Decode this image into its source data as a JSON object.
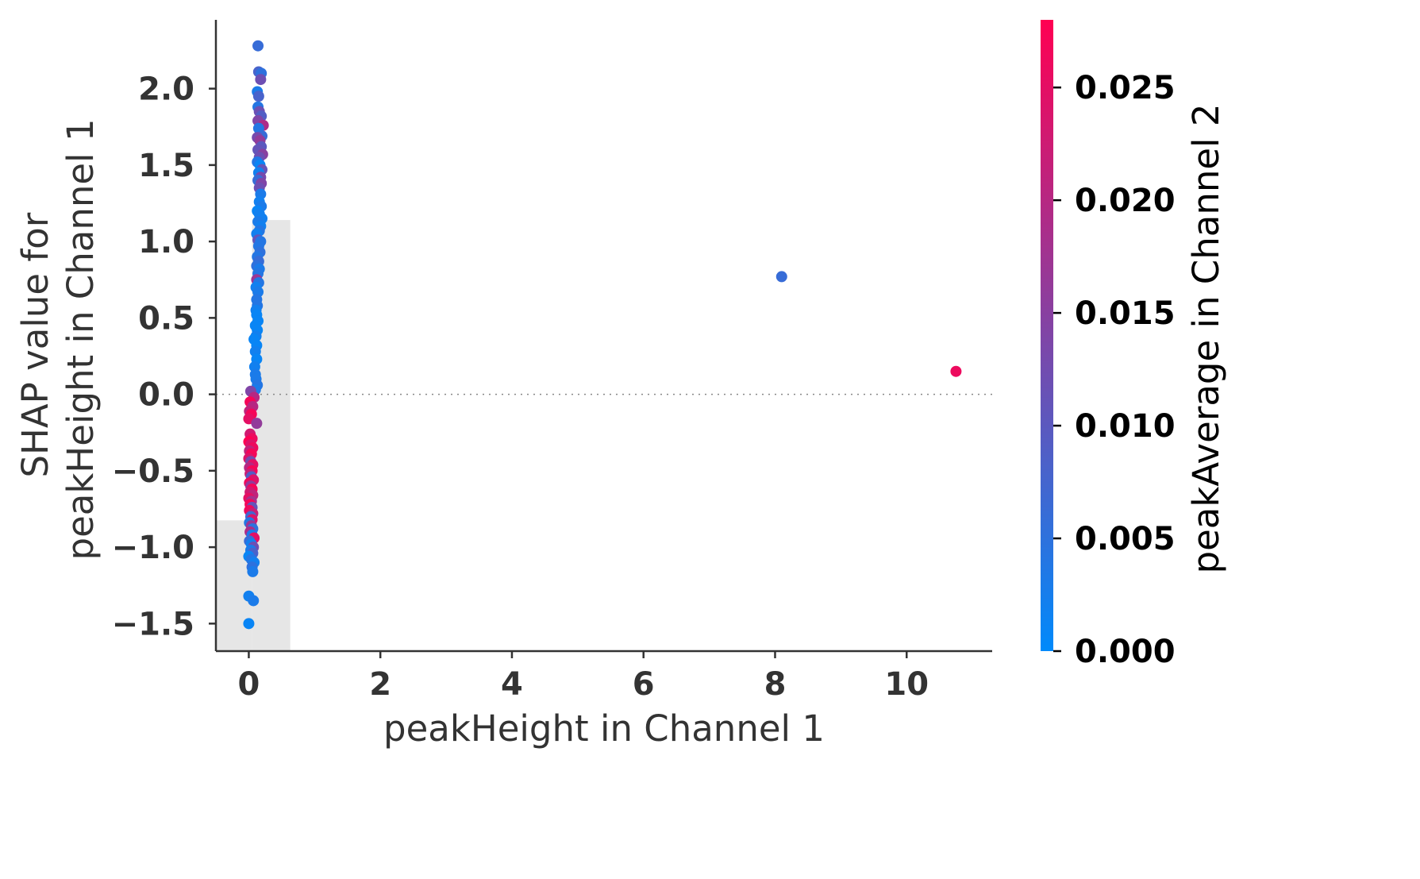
{
  "chart_data": {
    "type": "scatter",
    "title": "",
    "xlabel": "peakHeight in Channel 1",
    "ylabel_lines": [
      "SHAP value for",
      "peakHeight in Channel 1"
    ],
    "xlim": [
      -0.5,
      11.3
    ],
    "ylim": [
      -1.68,
      2.45
    ],
    "xticks": [
      0,
      2,
      4,
      6,
      8,
      10
    ],
    "xtick_labels": [
      "0",
      "2",
      "4",
      "6",
      "8",
      "10"
    ],
    "yticks": [
      -1.5,
      -1.0,
      -0.5,
      0.0,
      0.5,
      1.0,
      1.5,
      2.0
    ],
    "ytick_labels": [
      "−1.5",
      "−1.0",
      "−0.5",
      "0.0",
      "0.5",
      "1.0",
      "1.5",
      "2.0"
    ],
    "zero_line": true,
    "grid": false,
    "histogram": {
      "color": "#e6e6e6",
      "bins": [
        {
          "x0": -0.5,
          "x1": 0.05,
          "height": 0.27
        },
        {
          "x0": 0.05,
          "x1": 0.63,
          "height": 0.89
        }
      ]
    },
    "colorbar": {
      "label": "peakAverage in Channel 2",
      "range": [
        0.0,
        0.028
      ],
      "ticks": [
        0.0,
        0.005,
        0.01,
        0.015,
        0.02,
        0.025
      ],
      "tick_labels": [
        "0.000",
        "0.005",
        "0.010",
        "0.015",
        "0.020",
        "0.025"
      ],
      "colors": [
        "#008afb",
        "#ff0052"
      ]
    },
    "points": [
      [
        0.14,
        2.28,
        0.006
      ],
      [
        0.15,
        2.11,
        0.008
      ],
      [
        0.19,
        2.1,
        0.005
      ],
      [
        0.18,
        2.06,
        0.012
      ],
      [
        0.13,
        1.98,
        0.003
      ],
      [
        0.15,
        1.95,
        0.008
      ],
      [
        0.14,
        1.88,
        0.004
      ],
      [
        0.16,
        1.85,
        0.012
      ],
      [
        0.19,
        1.82,
        0.009
      ],
      [
        0.14,
        1.79,
        0.014
      ],
      [
        0.22,
        1.76,
        0.019
      ],
      [
        0.15,
        1.74,
        0.004
      ],
      [
        0.2,
        1.69,
        0.006
      ],
      [
        0.13,
        1.68,
        0.013
      ],
      [
        0.17,
        1.66,
        0.016
      ],
      [
        0.19,
        1.62,
        0.01
      ],
      [
        0.14,
        1.6,
        0.011
      ],
      [
        0.21,
        1.57,
        0.015
      ],
      [
        0.16,
        1.55,
        0.012
      ],
      [
        0.13,
        1.52,
        0.004
      ],
      [
        0.17,
        1.5,
        0.001
      ],
      [
        0.2,
        1.47,
        0.011
      ],
      [
        0.15,
        1.45,
        0.002
      ],
      [
        0.18,
        1.42,
        0.013
      ],
      [
        0.14,
        1.4,
        0.006
      ],
      [
        0.19,
        1.38,
        0.014
      ],
      [
        0.16,
        1.35,
        0.012
      ],
      [
        0.18,
        1.31,
        0.003
      ],
      [
        0.16,
        1.26,
        0.002
      ],
      [
        0.19,
        1.23,
        0.003
      ],
      [
        0.13,
        1.2,
        0.001
      ],
      [
        0.16,
        1.18,
        0.002
      ],
      [
        0.2,
        1.15,
        0.002
      ],
      [
        0.14,
        1.13,
        0.003
      ],
      [
        0.18,
        1.1,
        0.002
      ],
      [
        0.16,
        1.07,
        0.004
      ],
      [
        0.12,
        1.05,
        0.002
      ],
      [
        0.14,
        1.01,
        0.011
      ],
      [
        0.18,
        1.0,
        0.004
      ],
      [
        0.15,
        0.97,
        0.004
      ],
      [
        0.17,
        0.93,
        0.005
      ],
      [
        0.13,
        0.9,
        0.004
      ],
      [
        0.15,
        0.87,
        0.006
      ],
      [
        0.12,
        0.84,
        0.005
      ],
      [
        0.16,
        0.82,
        0.003
      ],
      [
        0.14,
        0.79,
        0.004
      ],
      [
        0.12,
        0.75,
        0.017
      ],
      [
        0.15,
        0.73,
        0.004
      ],
      [
        0.11,
        0.7,
        0.002
      ],
      [
        0.14,
        0.67,
        0.003
      ],
      [
        0.12,
        0.62,
        0.004
      ],
      [
        0.13,
        0.58,
        0.004
      ],
      [
        0.11,
        0.55,
        0.002
      ],
      [
        0.12,
        0.52,
        0.001
      ],
      [
        0.14,
        0.48,
        0.001
      ],
      [
        0.1,
        0.45,
        0.001
      ],
      [
        0.13,
        0.42,
        0.001
      ],
      [
        0.11,
        0.38,
        0.002
      ],
      [
        0.08,
        0.36,
        0.001
      ],
      [
        0.12,
        0.32,
        0.001
      ],
      [
        0.1,
        0.28,
        0.002
      ],
      [
        0.12,
        0.23,
        0.001
      ],
      [
        0.09,
        0.18,
        0.002
      ],
      [
        0.1,
        0.13,
        0.003
      ],
      [
        0.11,
        0.1,
        0.003
      ],
      [
        0.13,
        0.06,
        0.004
      ],
      [
        0.1,
        0.03,
        0.003
      ],
      [
        0.03,
        0.02,
        0.014
      ],
      [
        0.08,
        -0.02,
        0.02
      ],
      [
        0.02,
        -0.05,
        0.027
      ],
      [
        0.06,
        -0.08,
        0.02
      ],
      [
        0.01,
        -0.11,
        0.021
      ],
      [
        0.04,
        -0.13,
        0.027
      ],
      [
        0.0,
        -0.16,
        0.025
      ],
      [
        0.12,
        -0.19,
        0.016
      ],
      [
        0.02,
        -0.26,
        0.023
      ],
      [
        0.05,
        -0.29,
        0.026
      ],
      [
        0.0,
        -0.31,
        0.028
      ],
      [
        0.03,
        -0.33,
        0.024
      ],
      [
        0.06,
        -0.35,
        0.026
      ],
      [
        0.01,
        -0.37,
        0.021
      ],
      [
        0.04,
        -0.39,
        0.027
      ],
      [
        0.0,
        -0.42,
        0.024
      ],
      [
        0.03,
        -0.44,
        0.013
      ],
      [
        0.06,
        -0.46,
        0.025
      ],
      [
        0.01,
        -0.48,
        0.02
      ],
      [
        0.05,
        -0.5,
        0.027
      ],
      [
        0.02,
        -0.52,
        0.022
      ],
      [
        0.04,
        -0.54,
        0.009
      ],
      [
        0.07,
        -0.56,
        0.024
      ],
      [
        0.01,
        -0.58,
        0.026
      ],
      [
        0.03,
        -0.6,
        0.016
      ],
      [
        0.05,
        -0.62,
        0.027
      ],
      [
        0.02,
        -0.64,
        0.023
      ],
      [
        0.06,
        -0.66,
        0.021
      ],
      [
        0.0,
        -0.68,
        0.025
      ],
      [
        0.04,
        -0.7,
        0.018
      ],
      [
        0.02,
        -0.72,
        0.027
      ],
      [
        0.05,
        -0.74,
        0.011
      ],
      [
        0.01,
        -0.76,
        0.026
      ],
      [
        0.06,
        -0.78,
        0.022
      ],
      [
        0.03,
        -0.8,
        0.007
      ],
      [
        0.05,
        -0.82,
        0.024
      ],
      [
        0.01,
        -0.84,
        0.004
      ],
      [
        0.04,
        -0.86,
        0.017
      ],
      [
        0.06,
        -0.88,
        0.005
      ],
      [
        0.02,
        -0.9,
        0.019
      ],
      [
        0.05,
        -0.92,
        0.003
      ],
      [
        0.08,
        -0.94,
        0.025
      ],
      [
        0.01,
        -0.96,
        0.006
      ],
      [
        0.04,
        -0.98,
        0.002
      ],
      [
        0.07,
        -1.0,
        0.012
      ],
      [
        0.03,
        -1.02,
        0.003
      ],
      [
        0.06,
        -1.04,
        0.008
      ],
      [
        0.0,
        -1.06,
        0.001
      ],
      [
        0.04,
        -1.08,
        0.004
      ],
      [
        0.08,
        -1.1,
        0.002
      ],
      [
        0.05,
        -1.13,
        0.005
      ],
      [
        0.06,
        -1.16,
        0.003
      ],
      [
        0.0,
        -1.32,
        0.002
      ],
      [
        0.07,
        -1.35,
        0.003
      ],
      [
        0.0,
        -1.5,
        0.001
      ],
      [
        8.1,
        0.77,
        0.006
      ],
      [
        10.75,
        0.15,
        0.026
      ]
    ]
  }
}
